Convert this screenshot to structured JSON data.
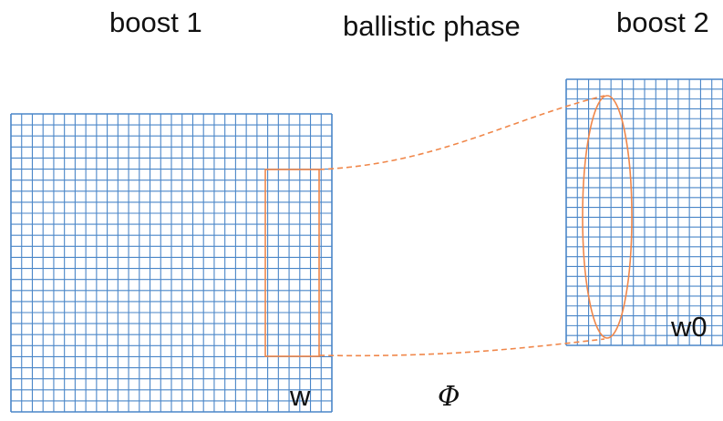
{
  "labels": {
    "boost1": "boost 1",
    "ballistic": "ballistic phase",
    "boost2": "boost 2",
    "w": "w",
    "w0": "w0",
    "phi": "Φ"
  },
  "colors": {
    "grid": "#4a86c8",
    "highlight": "#f0874a",
    "text": "#111111",
    "background": "#ffffff"
  },
  "grids": {
    "boost1_columns": 30,
    "boost1_rows": 27,
    "boost2_columns": 14,
    "boost2_rows": 27
  }
}
